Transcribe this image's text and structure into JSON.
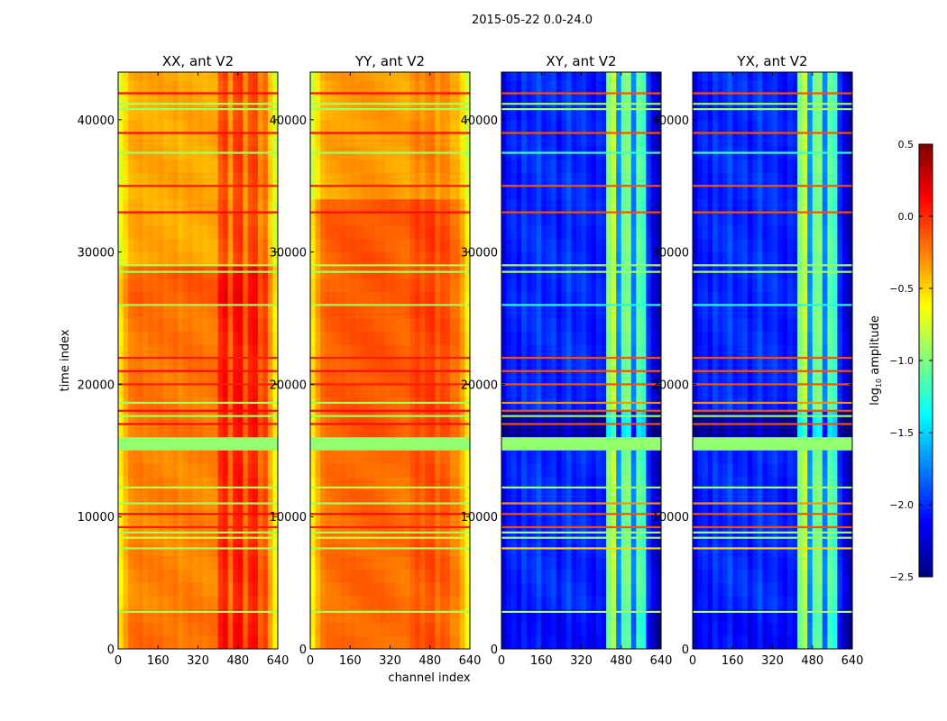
{
  "chart_data": {
    "type": "heatmap",
    "title": "2015-05-22 0.0-24.0",
    "xlabel": "channel index",
    "ylabel": "time index",
    "xlim": [
      0,
      640
    ],
    "ylim": [
      0,
      43600
    ],
    "xticks": [
      "0",
      "160",
      "320",
      "480",
      "640"
    ],
    "xtick_values": [
      0,
      160,
      320,
      480,
      640
    ],
    "yticks": [
      "0",
      "10000",
      "20000",
      "30000",
      "40000"
    ],
    "ytick_values": [
      0,
      10000,
      20000,
      30000,
      40000
    ],
    "colorbar": {
      "label": "log10 amplitude",
      "label_main": "log",
      "label_sub": "10",
      "label_rest": " amplitude",
      "range": [
        -2.5,
        0.5
      ],
      "colormap": "jet",
      "ticks": [
        "0.5",
        "0.0",
        "−0.5",
        "−1.0",
        "−1.5",
        "−2.0",
        "−2.5"
      ],
      "tick_values": [
        0.5,
        0,
        -0.5,
        -1,
        -1.5,
        -2,
        -2.5
      ]
    },
    "panels": [
      {
        "title": "XX, ant V2",
        "channel_bin": 20,
        "channel_profile": [
          -0.55,
          -0.38,
          -0.25,
          -0.22,
          -0.2,
          -0.24,
          -0.21,
          -0.23,
          -0.2,
          -0.24,
          -0.22,
          -0.2,
          -0.25,
          -0.22,
          -0.2,
          -0.23,
          -0.21,
          -0.24,
          -0.22,
          -0.22,
          0.02,
          0.1,
          -0.18,
          0.08,
          0.12,
          -0.16,
          0.05,
          0.1,
          -0.15,
          -0.05,
          -0.35,
          -0.6
        ],
        "time_offsets": [
          [
            0,
            3000,
            0.02
          ],
          [
            3000,
            15000,
            -0.04
          ],
          [
            15000,
            26000,
            0.0
          ],
          [
            26000,
            29000,
            0.08
          ],
          [
            29000,
            43600,
            -0.15
          ]
        ],
        "stripes": [
          [
            2800,
            -0.9
          ],
          [
            7600,
            -0.9
          ],
          [
            8400,
            -0.8
          ],
          [
            8800,
            -0.9
          ],
          [
            9200,
            0.05
          ],
          [
            10200,
            0.1
          ],
          [
            11000,
            -0.9
          ],
          [
            12200,
            -0.85
          ],
          [
            15500,
            -0.95,
            1000
          ],
          [
            17000,
            0.1
          ],
          [
            17600,
            -0.9
          ],
          [
            18000,
            0.1
          ],
          [
            18600,
            -0.9
          ],
          [
            20000,
            0.05
          ],
          [
            21000,
            0.1
          ],
          [
            22000,
            0.05
          ],
          [
            26000,
            -0.9
          ],
          [
            28500,
            -0.9
          ],
          [
            29000,
            -0.85
          ],
          [
            33000,
            0.1
          ],
          [
            35000,
            0.05
          ],
          [
            37500,
            -0.9
          ],
          [
            39000,
            0.1
          ],
          [
            40800,
            -0.9
          ],
          [
            41200,
            -0.85
          ],
          [
            42000,
            0.1
          ]
        ]
      },
      {
        "title": "YY, ant V2",
        "channel_bin": 20,
        "channel_profile": [
          -0.55,
          -0.35,
          -0.2,
          -0.16,
          -0.15,
          -0.15,
          -0.13,
          -0.14,
          -0.12,
          -0.13,
          -0.12,
          -0.12,
          -0.12,
          -0.13,
          -0.12,
          -0.14,
          -0.14,
          -0.15,
          -0.16,
          -0.16,
          -0.1,
          -0.05,
          -0.12,
          -0.05,
          -0.03,
          -0.15,
          -0.08,
          -0.1,
          -0.2,
          -0.2,
          -0.35,
          -0.58
        ],
        "time_offsets": [
          [
            0,
            15000,
            -0.05
          ],
          [
            15000,
            34000,
            0.0
          ],
          [
            34000,
            43600,
            -0.2
          ]
        ],
        "stripes": [
          [
            2800,
            -0.9
          ],
          [
            7600,
            -0.9
          ],
          [
            8400,
            -0.8
          ],
          [
            8800,
            -0.9
          ],
          [
            9200,
            0.05
          ],
          [
            10200,
            0.1
          ],
          [
            11000,
            -0.9
          ],
          [
            12200,
            -0.85
          ],
          [
            15500,
            -0.95,
            1000
          ],
          [
            17000,
            0.1
          ],
          [
            17600,
            -0.9
          ],
          [
            18000,
            0.1
          ],
          [
            18600,
            -0.9
          ],
          [
            20000,
            0.05
          ],
          [
            21000,
            0.1
          ],
          [
            22000,
            0.05
          ],
          [
            26000,
            -0.9
          ],
          [
            28500,
            -0.9
          ],
          [
            29000,
            -0.85
          ],
          [
            33000,
            0.1
          ],
          [
            35000,
            0.05
          ],
          [
            37500,
            -0.9
          ],
          [
            39000,
            0.1
          ],
          [
            40800,
            -0.9
          ],
          [
            41200,
            -0.85
          ],
          [
            42000,
            0.1
          ]
        ]
      },
      {
        "title": "XY, ant V2",
        "channel_bin": 20,
        "channel_profile": [
          -2.2,
          -2.05,
          -2.0,
          -2.1,
          -1.95,
          -2.05,
          -2.0,
          -1.9,
          -2.05,
          -2.0,
          -1.95,
          -2.1,
          -2.0,
          -1.9,
          -2.05,
          -2.0,
          -1.95,
          -2.05,
          -2.1,
          -2.0,
          -2.05,
          -1.0,
          -0.8,
          -1.7,
          -1.05,
          -1.0,
          -1.75,
          -1.1,
          -1.2,
          -2.0,
          -2.2,
          -2.35
        ],
        "time_offsets": [
          [
            0,
            3000,
            -0.1
          ],
          [
            3000,
            15000,
            0.0
          ],
          [
            15000,
            17600,
            -0.35
          ],
          [
            17600,
            43600,
            0.0
          ]
        ],
        "stripes": [
          [
            2800,
            -0.9
          ],
          [
            7600,
            -0.5
          ],
          [
            8400,
            -0.9
          ],
          [
            8800,
            -0.9
          ],
          [
            9200,
            -0.1
          ],
          [
            10200,
            -0.1
          ],
          [
            11000,
            -0.3
          ],
          [
            12200,
            -0.9
          ],
          [
            15500,
            -0.95,
            1000
          ],
          [
            17000,
            -0.1
          ],
          [
            17600,
            -0.9
          ],
          [
            18000,
            -0.1
          ],
          [
            18600,
            -0.3
          ],
          [
            20000,
            -0.1
          ],
          [
            21000,
            -0.1
          ],
          [
            22000,
            -0.1
          ],
          [
            26000,
            -1.3
          ],
          [
            28500,
            -0.9
          ],
          [
            29000,
            -0.9
          ],
          [
            33000,
            -0.1
          ],
          [
            35000,
            -0.1
          ],
          [
            37500,
            -1.2
          ],
          [
            39000,
            -0.1
          ],
          [
            40800,
            -0.9
          ],
          [
            41200,
            -0.9
          ],
          [
            42000,
            -0.1
          ]
        ]
      },
      {
        "title": "YX, ant V2",
        "channel_bin": 20,
        "channel_profile": [
          -2.2,
          -2.05,
          -2.0,
          -2.1,
          -1.95,
          -2.05,
          -2.0,
          -1.9,
          -2.05,
          -2.0,
          -1.95,
          -2.1,
          -2.0,
          -1.9,
          -2.05,
          -2.0,
          -1.95,
          -2.05,
          -2.1,
          -2.0,
          -2.05,
          -1.0,
          -0.8,
          -1.7,
          -1.05,
          -1.0,
          -1.75,
          -1.1,
          -1.2,
          -2.0,
          -2.2,
          -2.35
        ],
        "time_offsets": [
          [
            0,
            3000,
            -0.1
          ],
          [
            3000,
            15000,
            0.0
          ],
          [
            15000,
            17600,
            -0.35
          ],
          [
            17600,
            43600,
            0.0
          ]
        ],
        "stripes": [
          [
            2800,
            -0.9
          ],
          [
            7600,
            -0.5
          ],
          [
            8400,
            -0.9
          ],
          [
            8800,
            -0.9
          ],
          [
            9200,
            -0.1
          ],
          [
            10200,
            -0.1
          ],
          [
            11000,
            -0.3
          ],
          [
            12200,
            -0.9
          ],
          [
            15500,
            -0.95,
            1000
          ],
          [
            17000,
            -0.1
          ],
          [
            17600,
            -0.9
          ],
          [
            18000,
            -0.1
          ],
          [
            18600,
            -0.3
          ],
          [
            20000,
            -0.1
          ],
          [
            21000,
            -0.1
          ],
          [
            22000,
            -0.1
          ],
          [
            26000,
            -1.3
          ],
          [
            28500,
            -0.9
          ],
          [
            29000,
            -0.9
          ],
          [
            33000,
            -0.1
          ],
          [
            35000,
            -0.1
          ],
          [
            37500,
            -1.2
          ],
          [
            39000,
            -0.1
          ],
          [
            40800,
            -0.9
          ],
          [
            41200,
            -0.9
          ],
          [
            42000,
            -0.1
          ]
        ]
      }
    ]
  }
}
